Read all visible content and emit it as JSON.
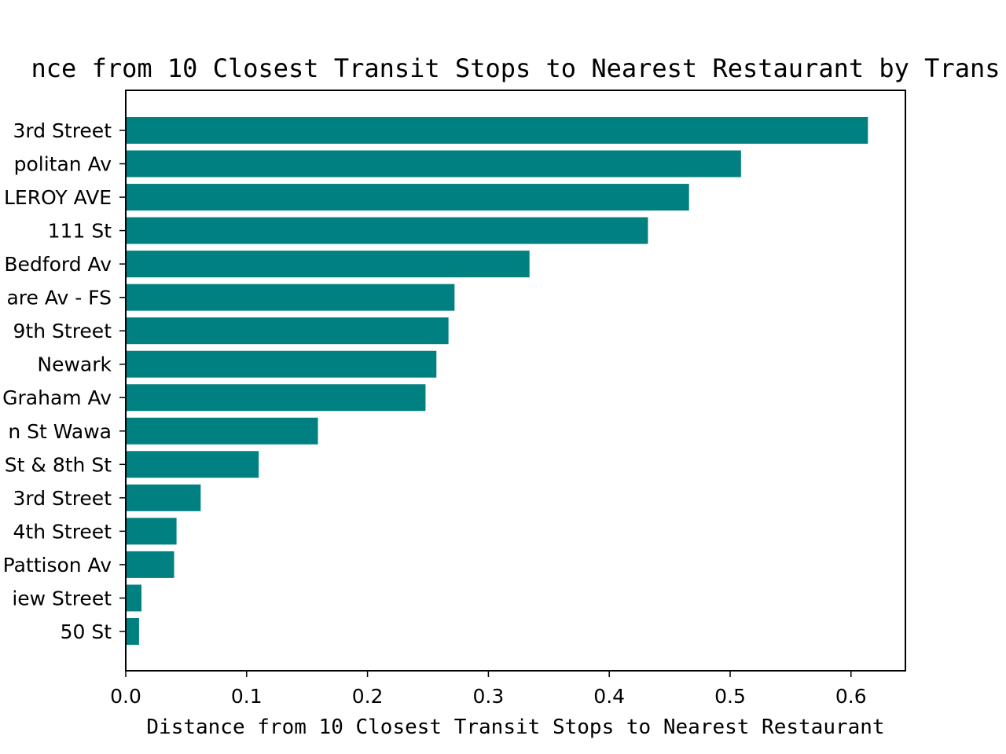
{
  "chart_data": {
    "type": "bar",
    "orientation": "horizontal",
    "title": "nce from 10 Closest Transit Stops to Nearest Restaurant by Trans",
    "xlabel": "Distance from 10 Closest Transit Stops to Nearest Restaurant",
    "ylabel": "",
    "xlim": [
      0,
      0.645
    ],
    "x_ticks": [
      0.0,
      0.1,
      0.2,
      0.3,
      0.4,
      0.5,
      0.6
    ],
    "x_tick_labels": [
      "0.0",
      "0.1",
      "0.2",
      "0.3",
      "0.4",
      "0.5",
      "0.6"
    ],
    "grid": false,
    "bar_color": "#008080",
    "categories": [
      "3rd Street",
      "politan Av",
      "LEROY AVE",
      "111 St",
      "Bedford Av",
      "are Av - FS",
      "9th Street",
      "Newark",
      "Graham Av",
      "n St Wawa",
      "St & 8th St",
      "3rd Street",
      "4th Street",
      "Pattison Av",
      "iew Street",
      "50 St"
    ],
    "values": [
      0.614,
      0.509,
      0.466,
      0.432,
      0.334,
      0.272,
      0.267,
      0.257,
      0.248,
      0.159,
      0.11,
      0.062,
      0.042,
      0.04,
      0.013,
      0.011
    ]
  }
}
